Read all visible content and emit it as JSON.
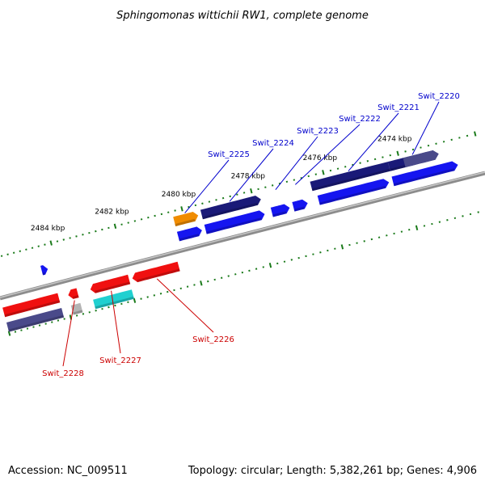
{
  "title": "Sphingomonas wittichii RW1, complete genome",
  "footer": {
    "accession": "Accession: NC_009511",
    "summary": "Topology: circular; Length: 5,382,261 bp; Genes: 4,906"
  },
  "colors": {
    "backbone": "#8c8c8c",
    "tick": "#1a7a1a",
    "label_forward": "#0000cc",
    "label_reverse": "#cc0000",
    "navy": "#1a1a78",
    "slate": "#4a4a8a",
    "blue": "#1515f0",
    "orange": "#f08c00",
    "red": "#f01010",
    "cyan": "#20d0d0",
    "gray": "#b4b4b4"
  },
  "scale": {
    "kbp_start": 2486,
    "kbp_end": 2472,
    "axis_text_unit": "kbp"
  },
  "ticks": [
    {
      "kbp": 2484,
      "label": "2484 kbp"
    },
    {
      "kbp": 2482,
      "label": "2482 kbp"
    },
    {
      "kbp": 2480,
      "label": "2480 kbp"
    },
    {
      "kbp": 2478,
      "label": "2478 kbp"
    },
    {
      "kbp": 2476,
      "label": "2476 kbp"
    },
    {
      "kbp": 2474,
      "label": "2474 kbp"
    }
  ],
  "genes": [
    {
      "name": "Swit_2220",
      "label": "Swit_2220",
      "strand": "+",
      "track": 1,
      "start_kbp": 2473.0,
      "end_kbp": 2474.3,
      "color": "navy_slate",
      "arrow": true
    },
    {
      "name": "Swit_2220b",
      "label": "",
      "strand": "+",
      "track": 2,
      "start_kbp": 2472.6,
      "end_kbp": 2474.3,
      "color": "blue",
      "arrow": true
    },
    {
      "name": "Swit_2221",
      "label": "Swit_2221",
      "strand": "+",
      "track": 1,
      "start_kbp": 2474.3,
      "end_kbp": 2476.4,
      "color": "navy",
      "arrow": false
    },
    {
      "name": "Swit_2221b",
      "label": "",
      "strand": "+",
      "track": 2,
      "start_kbp": 2474.4,
      "end_kbp": 2476.3,
      "color": "blue",
      "arrow": true
    },
    {
      "name": "Swit_2222",
      "label": "Swit_2222",
      "strand": "+",
      "track": 2,
      "start_kbp": 2476.6,
      "end_kbp": 2477.0,
      "color": "blue",
      "arrow": true
    },
    {
      "name": "Swit_2223",
      "label": "Swit_2223",
      "strand": "+",
      "track": 2,
      "start_kbp": 2477.1,
      "end_kbp": 2477.6,
      "color": "blue",
      "arrow": true
    },
    {
      "name": "Swit_2224",
      "label": "Swit_2224",
      "strand": "+",
      "track": 1,
      "start_kbp": 2477.8,
      "end_kbp": 2479.5,
      "color": "navy",
      "arrow": true
    },
    {
      "name": "Swit_2224b",
      "label": "",
      "strand": "+",
      "track": 2,
      "start_kbp": 2477.8,
      "end_kbp": 2479.5,
      "color": "blue",
      "arrow": true
    },
    {
      "name": "Swit_2225",
      "label": "Swit_2225",
      "strand": "+",
      "track": 1,
      "start_kbp": 2479.6,
      "end_kbp": 2480.3,
      "color": "orange",
      "arrow": true
    },
    {
      "name": "Swit_2225b",
      "label": "",
      "strand": "+",
      "track": 2,
      "start_kbp": 2479.6,
      "end_kbp": 2480.3,
      "color": "blue",
      "arrow": true
    },
    {
      "name": "Swit_2226",
      "label": "Swit_2226",
      "strand": "-",
      "track": 1,
      "start_kbp": 2480.5,
      "end_kbp": 2481.9,
      "color": "red",
      "arrow": true
    },
    {
      "name": "Swit_2227",
      "label": "Swit_2227",
      "strand": "-",
      "track": 1,
      "start_kbp": 2482.0,
      "end_kbp": 2483.2,
      "color": "red",
      "arrow": true
    },
    {
      "name": "Swit_2227b",
      "label": "",
      "strand": "-",
      "track": 2,
      "start_kbp": 2482.0,
      "end_kbp": 2483.2,
      "color": "cyan",
      "arrow": false
    },
    {
      "name": "Swit_2228",
      "label": "Swit_2228",
      "strand": "-",
      "track": 1,
      "start_kbp": 2483.6,
      "end_kbp": 2483.9,
      "color": "red",
      "arrow": true
    },
    {
      "name": "Swit_2228b",
      "label": "",
      "strand": "-",
      "track": 2,
      "start_kbp": 2483.6,
      "end_kbp": 2483.9,
      "color": "gray",
      "arrow": false
    },
    {
      "name": "edge_red",
      "label": "",
      "strand": "-",
      "track": 1,
      "start_kbp": 2484.2,
      "end_kbp": 2486.0,
      "color": "red",
      "arrow": false
    },
    {
      "name": "edge_slate",
      "label": "",
      "strand": "-",
      "track": 2,
      "start_kbp": 2484.2,
      "end_kbp": 2486.0,
      "color": "slate",
      "arrow": false
    },
    {
      "name": "edge_blue",
      "label": "",
      "strand": "+",
      "track": 0,
      "start_kbp": 2484.3,
      "end_kbp": 2484.5,
      "color": "blue",
      "arrow": true
    }
  ]
}
